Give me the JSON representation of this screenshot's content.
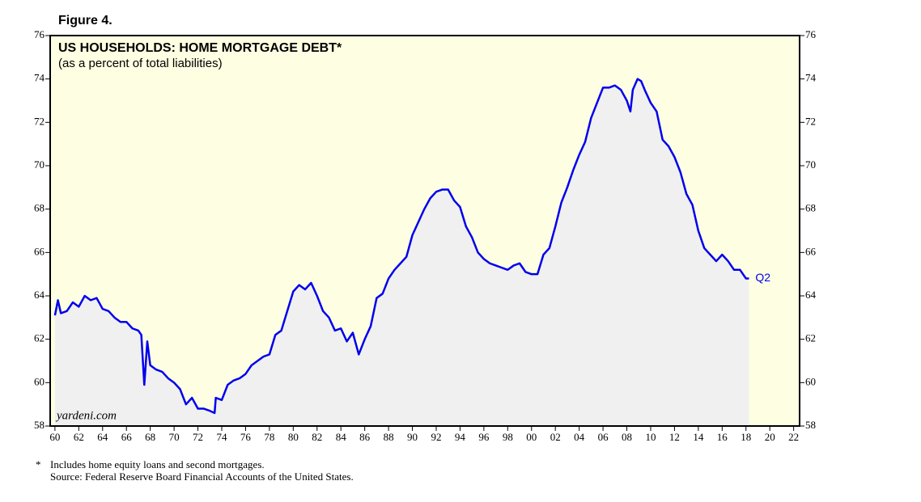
{
  "chart_data": {
    "type": "area-line",
    "figure_label": "Figure 4.",
    "title": "US HOUSEHOLDS: HOME MORTGAGE DEBT*",
    "subtitle": "(as a percent of total liabilities)",
    "watermark": "yardeni.com",
    "end_label": "Q2",
    "footnote_marker": "*",
    "footnote": "Includes home equity loans and second mortgages.",
    "source": "Source: Federal Reserve Board Financial Accounts of the United States.",
    "color": "#0000ee",
    "fill_color": "#f0f0f0",
    "background": "#fefee2",
    "x": [
      1960,
      1960.25,
      1960.5,
      1961,
      1961.5,
      1962,
      1962.5,
      1963,
      1963.5,
      1964,
      1964.5,
      1965,
      1965.5,
      1966,
      1966.5,
      1967,
      1967.25,
      1967.5,
      1967.75,
      1968,
      1968.5,
      1969,
      1969.5,
      1970,
      1970.5,
      1971,
      1971.5,
      1972,
      1972.5,
      1973,
      1973.4,
      1973.5,
      1974,
      1974.5,
      1975,
      1975.5,
      1976,
      1976.5,
      1977,
      1977.5,
      1978,
      1978.5,
      1979,
      1979.5,
      1980,
      1980.5,
      1981,
      1981.5,
      1982,
      1982.5,
      1983,
      1983.5,
      1984,
      1984.5,
      1985,
      1985.5,
      1986,
      1986.5,
      1987,
      1987.5,
      1988,
      1988.5,
      1989,
      1989.5,
      1990,
      1990.5,
      1991,
      1991.5,
      1992,
      1992.5,
      1993,
      1993.5,
      1994,
      1994.5,
      1995,
      1995.5,
      1996,
      1996.5,
      1997,
      1997.5,
      1998,
      1998.5,
      1999,
      1999.5,
      2000,
      2000.5,
      2001,
      2001.5,
      2002,
      2002.5,
      2003,
      2003.5,
      2004,
      2004.5,
      2005,
      2005.5,
      2006,
      2006.5,
      2007,
      2007.5,
      2008,
      2008.3,
      2008.5,
      2008.9,
      2009.2,
      2009.5,
      2010,
      2010.5,
      2011,
      2011.5,
      2012,
      2012.5,
      2013,
      2013.5,
      2014,
      2014.5,
      2015,
      2015.5,
      2016,
      2016.5,
      2017,
      2017.5,
      2018,
      2018.25
    ],
    "values": [
      63.1,
      63.8,
      63.2,
      63.3,
      63.7,
      63.5,
      64.0,
      63.8,
      63.9,
      63.4,
      63.3,
      63.0,
      62.8,
      62.8,
      62.5,
      62.4,
      62.2,
      59.9,
      61.9,
      60.8,
      60.6,
      60.5,
      60.2,
      60.0,
      59.7,
      59.0,
      59.3,
      58.8,
      58.8,
      58.7,
      58.6,
      59.3,
      59.2,
      59.9,
      60.1,
      60.2,
      60.4,
      60.8,
      61.0,
      61.2,
      61.3,
      62.2,
      62.4,
      63.3,
      64.2,
      64.5,
      64.3,
      64.6,
      64.0,
      63.3,
      63.0,
      62.4,
      62.5,
      61.9,
      62.3,
      61.3,
      62.0,
      62.6,
      63.9,
      64.1,
      64.8,
      65.2,
      65.5,
      65.8,
      66.8,
      67.4,
      68.0,
      68.5,
      68.8,
      68.9,
      68.9,
      68.4,
      68.1,
      67.2,
      66.7,
      66.0,
      65.7,
      65.5,
      65.4,
      65.3,
      65.2,
      65.4,
      65.5,
      65.1,
      65.0,
      65.0,
      65.9,
      66.2,
      67.2,
      68.3,
      69.0,
      69.8,
      70.5,
      71.1,
      72.2,
      72.9,
      73.6,
      73.6,
      73.7,
      73.5,
      73.0,
      72.5,
      73.5,
      74.0,
      73.9,
      73.5,
      72.9,
      72.5,
      71.2,
      70.9,
      70.4,
      69.7,
      68.7,
      68.2,
      67.0,
      66.2,
      65.9,
      65.6,
      65.9,
      65.6,
      65.2,
      65.2,
      64.8,
      64.8
    ],
    "xlim": [
      1959.6,
      2022.5
    ],
    "ylim": [
      58,
      76
    ],
    "yticks": [
      58,
      60,
      62,
      64,
      66,
      68,
      70,
      72,
      74,
      76
    ],
    "y2lim": [
      58,
      76
    ],
    "y2ticks": [
      58,
      60,
      62,
      64,
      66,
      68,
      70,
      72,
      74,
      76
    ],
    "xticks": [
      {
        "value": 1960,
        "label": "60"
      },
      {
        "value": 1962,
        "label": "62"
      },
      {
        "value": 1964,
        "label": "64"
      },
      {
        "value": 1966,
        "label": "66"
      },
      {
        "value": 1968,
        "label": "68"
      },
      {
        "value": 1970,
        "label": "70"
      },
      {
        "value": 1972,
        "label": "72"
      },
      {
        "value": 1974,
        "label": "74"
      },
      {
        "value": 1976,
        "label": "76"
      },
      {
        "value": 1978,
        "label": "78"
      },
      {
        "value": 1980,
        "label": "80"
      },
      {
        "value": 1982,
        "label": "82"
      },
      {
        "value": 1984,
        "label": "84"
      },
      {
        "value": 1986,
        "label": "86"
      },
      {
        "value": 1988,
        "label": "88"
      },
      {
        "value": 1990,
        "label": "90"
      },
      {
        "value": 1992,
        "label": "92"
      },
      {
        "value": 1994,
        "label": "94"
      },
      {
        "value": 1996,
        "label": "96"
      },
      {
        "value": 1998,
        "label": "98"
      },
      {
        "value": 2000,
        "label": "00"
      },
      {
        "value": 2002,
        "label": "02"
      },
      {
        "value": 2004,
        "label": "04"
      },
      {
        "value": 2006,
        "label": "06"
      },
      {
        "value": 2008,
        "label": "08"
      },
      {
        "value": 2010,
        "label": "10"
      },
      {
        "value": 2012,
        "label": "12"
      },
      {
        "value": 2014,
        "label": "14"
      },
      {
        "value": 2016,
        "label": "16"
      },
      {
        "value": 2018,
        "label": "18"
      },
      {
        "value": 2020,
        "label": "20"
      },
      {
        "value": 2022,
        "label": "22"
      }
    ]
  }
}
